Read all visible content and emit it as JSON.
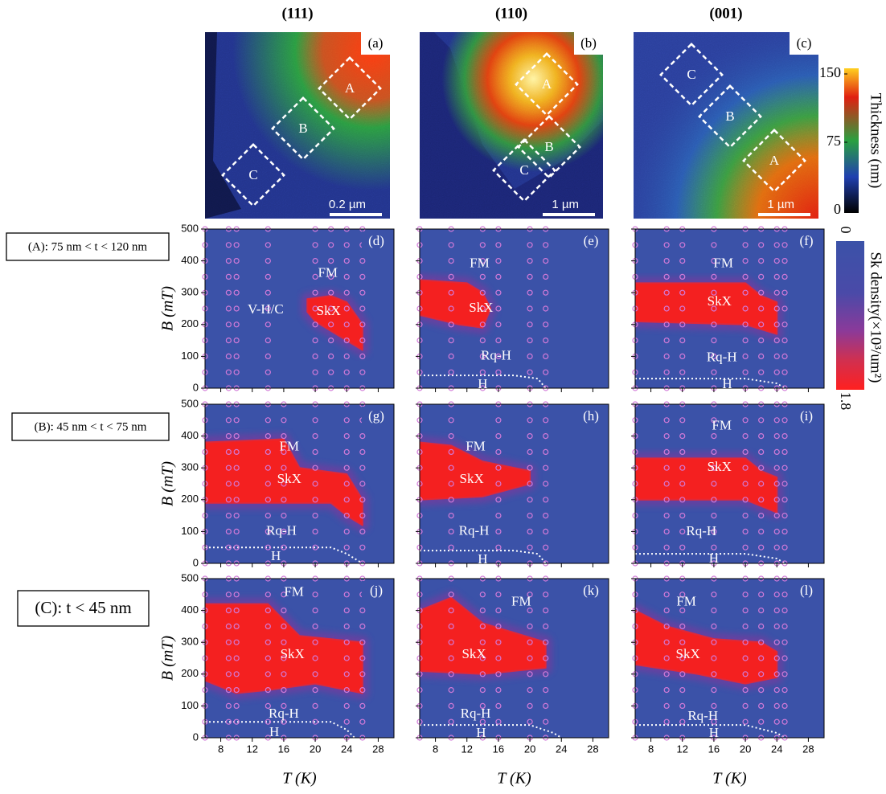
{
  "column_headers": [
    "(111)",
    "(110)",
    "(001)"
  ],
  "row_labels": [
    "(A): 75 nm < t < 120 nm",
    "(B): 45 nm < t < 75 nm",
    "(C): t < 45 nm"
  ],
  "images": [
    {
      "label": "(a)",
      "regions": [
        "A",
        "B",
        "C"
      ],
      "scale_bar": "0.2 µm"
    },
    {
      "label": "(b)",
      "regions": [
        "A",
        "B",
        "C"
      ],
      "scale_bar": "1 µm"
    },
    {
      "label": "(c)",
      "regions": [
        "A",
        "B",
        "C"
      ],
      "scale_bar": "1 µm"
    }
  ],
  "thickness_colorbar": {
    "label": "Thickness (nm)",
    "ticks": [
      0,
      75,
      150
    ]
  },
  "density_colorbar": {
    "label": "Sk density(×10³/um²)",
    "ticks": [
      0,
      1.8
    ]
  },
  "phase_axes": {
    "xlabel": "T (K)",
    "ylabel": "B (mT)",
    "xlim": [
      6,
      30
    ],
    "ylim": [
      0,
      500
    ],
    "xticks": [
      8,
      12,
      16,
      20,
      24,
      28
    ],
    "yticks": [
      0,
      100,
      200,
      300,
      400,
      500
    ],
    "sample_B": [
      0,
      50,
      100,
      150,
      200,
      250,
      300,
      350,
      400,
      450,
      500
    ]
  },
  "panels": [
    {
      "label": "(d)",
      "annotations": [
        "FM",
        "SkX",
        "V-H/C"
      ],
      "sample_T": [
        6,
        9,
        10,
        14,
        20,
        22,
        24,
        26
      ],
      "skx_region": [
        [
          19,
          280
        ],
        [
          22,
          290
        ],
        [
          24,
          270
        ],
        [
          26,
          200
        ],
        [
          26,
          120
        ],
        [
          24,
          150
        ],
        [
          20,
          210
        ],
        [
          19,
          240
        ]
      ],
      "h_boundary": []
    },
    {
      "label": "(e)",
      "annotations": [
        "FM",
        "SkX",
        "Rq-H",
        "H"
      ],
      "sample_T": [
        6,
        10,
        14,
        16,
        20,
        22
      ],
      "skx_region": [
        [
          6,
          340
        ],
        [
          12,
          330
        ],
        [
          14,
          300
        ],
        [
          15,
          250
        ],
        [
          14,
          190
        ],
        [
          11,
          200
        ],
        [
          6,
          230
        ]
      ],
      "h_boundary": [
        [
          6,
          40
        ],
        [
          18,
          40
        ],
        [
          21,
          30
        ],
        [
          22,
          0
        ]
      ]
    },
    {
      "label": "(f)",
      "annotations": [
        "FM",
        "SkX",
        "Rq-H",
        "H"
      ],
      "sample_T": [
        6,
        10,
        12,
        16,
        20,
        22,
        24,
        25
      ],
      "skx_region": [
        [
          6,
          330
        ],
        [
          20,
          330
        ],
        [
          22,
          290
        ],
        [
          24,
          270
        ],
        [
          24,
          170
        ],
        [
          20,
          200
        ],
        [
          6,
          210
        ]
      ],
      "h_boundary": [
        [
          6,
          30
        ],
        [
          20,
          30
        ],
        [
          24,
          15
        ],
        [
          25,
          0
        ]
      ]
    },
    {
      "label": "(g)",
      "annotations": [
        "FM",
        "SkX",
        "Rq-H",
        "H"
      ],
      "sample_T": [
        6,
        9,
        10,
        14,
        16,
        20,
        24,
        26
      ],
      "skx_region": [
        [
          6,
          380
        ],
        [
          16,
          390
        ],
        [
          18,
          300
        ],
        [
          24,
          280
        ],
        [
          26,
          200
        ],
        [
          26,
          120
        ],
        [
          24,
          150
        ],
        [
          22,
          190
        ],
        [
          6,
          190
        ]
      ],
      "h_boundary": [
        [
          6,
          50
        ],
        [
          22,
          50
        ],
        [
          24,
          30
        ],
        [
          26,
          0
        ]
      ]
    },
    {
      "label": "(h)",
      "annotations": [
        "FM",
        "SkX",
        "Rq-H",
        "H"
      ],
      "sample_T": [
        6,
        10,
        16,
        20,
        22
      ],
      "skx_region": [
        [
          6,
          380
        ],
        [
          10,
          370
        ],
        [
          14,
          320
        ],
        [
          20,
          290
        ],
        [
          20,
          250
        ],
        [
          14,
          210
        ],
        [
          6,
          200
        ]
      ],
      "h_boundary": [
        [
          6,
          40
        ],
        [
          18,
          40
        ],
        [
          21,
          30
        ],
        [
          22,
          0
        ]
      ]
    },
    {
      "label": "(i)",
      "annotations": [
        "FM",
        "SkX",
        "Rq-H",
        "H"
      ],
      "sample_T": [
        6,
        10,
        12,
        16,
        20,
        22,
        24,
        25
      ],
      "skx_region": [
        [
          6,
          330
        ],
        [
          20,
          330
        ],
        [
          22,
          290
        ],
        [
          24,
          270
        ],
        [
          24,
          160
        ],
        [
          20,
          200
        ],
        [
          6,
          200
        ]
      ],
      "h_boundary": [
        [
          6,
          30
        ],
        [
          20,
          30
        ],
        [
          24,
          15
        ],
        [
          25,
          0
        ]
      ]
    },
    {
      "label": "(j)",
      "annotations": [
        "FM",
        "SkX",
        "Rq-H",
        "H"
      ],
      "sample_T": [
        6,
        9,
        10,
        14,
        16,
        20,
        24,
        26
      ],
      "skx_region": [
        [
          6,
          420
        ],
        [
          14,
          420
        ],
        [
          18,
          320
        ],
        [
          26,
          300
        ],
        [
          26,
          140
        ],
        [
          20,
          170
        ],
        [
          14,
          150
        ],
        [
          10,
          140
        ],
        [
          6,
          180
        ]
      ],
      "h_boundary": [
        [
          6,
          50
        ],
        [
          22,
          50
        ],
        [
          24,
          25
        ],
        [
          25,
          0
        ]
      ]
    },
    {
      "label": "(k)",
      "annotations": [
        "FM",
        "SkX",
        "Rq-H",
        "H"
      ],
      "sample_T": [
        6,
        10,
        14,
        16,
        20,
        22
      ],
      "skx_region": [
        [
          6,
          400
        ],
        [
          10,
          440
        ],
        [
          14,
          360
        ],
        [
          22,
          300
        ],
        [
          22,
          220
        ],
        [
          14,
          200
        ],
        [
          6,
          210
        ]
      ],
      "h_boundary": [
        [
          6,
          40
        ],
        [
          20,
          40
        ],
        [
          23,
          15
        ],
        [
          24,
          0
        ]
      ]
    },
    {
      "label": "(l)",
      "annotations": [
        "FM",
        "SkX",
        "Rq-H",
        "H"
      ],
      "sample_T": [
        6,
        10,
        12,
        16,
        20,
        22,
        24,
        25
      ],
      "skx_region": [
        [
          6,
          400
        ],
        [
          10,
          350
        ],
        [
          16,
          310
        ],
        [
          22,
          300
        ],
        [
          24,
          270
        ],
        [
          24,
          190
        ],
        [
          20,
          170
        ],
        [
          14,
          200
        ],
        [
          6,
          230
        ]
      ],
      "h_boundary": [
        [
          6,
          40
        ],
        [
          20,
          40
        ],
        [
          24,
          15
        ],
        [
          25,
          0
        ]
      ]
    }
  ]
}
